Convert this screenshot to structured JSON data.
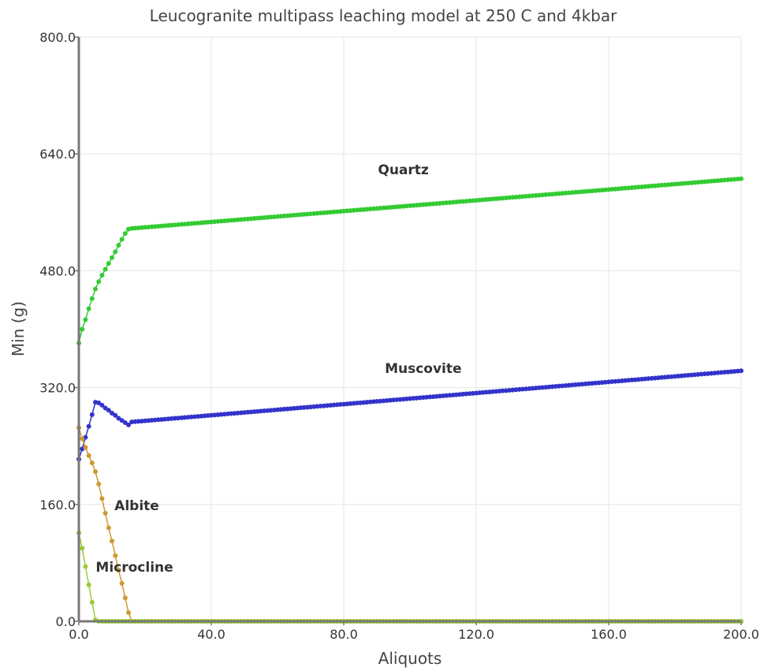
{
  "chart_data": {
    "type": "line",
    "title": "Leucogranite multipass leaching model at 250 C and 4kbar",
    "xlabel": "Aliquots",
    "ylabel": "Min (g)",
    "xlim": [
      0,
      200
    ],
    "ylim": [
      0,
      800
    ],
    "x_ticks": [
      "0.0",
      "40.0",
      "80.0",
      "120.0",
      "160.0",
      "200.0"
    ],
    "y_ticks": [
      "0.0",
      "160.0",
      "320.0",
      "480.0",
      "640.0",
      "800.0"
    ],
    "grid": true,
    "series": [
      {
        "name": "Quartz",
        "color": "#33cc33",
        "points": [
          [
            0,
            381
          ],
          [
            1,
            400
          ],
          [
            2,
            413
          ],
          [
            3,
            428
          ],
          [
            4,
            442
          ],
          [
            5,
            455
          ],
          [
            6,
            465
          ],
          [
            7,
            474
          ],
          [
            8,
            482
          ],
          [
            9,
            490
          ],
          [
            10,
            498
          ],
          [
            11,
            506
          ],
          [
            12,
            515
          ],
          [
            13,
            523
          ],
          [
            14,
            531
          ],
          [
            15,
            537
          ],
          [
            16,
            538
          ],
          [
            200,
            606
          ]
        ]
      },
      {
        "name": "Muscovite",
        "color": "#3333cc",
        "points": [
          [
            0,
            222
          ],
          [
            1,
            236
          ],
          [
            2,
            252
          ],
          [
            3,
            267
          ],
          [
            4,
            283
          ],
          [
            5,
            300
          ],
          [
            6,
            299
          ],
          [
            7,
            296
          ],
          [
            8,
            292
          ],
          [
            9,
            289
          ],
          [
            10,
            285
          ],
          [
            11,
            282
          ],
          [
            12,
            278
          ],
          [
            13,
            275
          ],
          [
            14,
            272
          ],
          [
            15,
            269
          ],
          [
            16,
            273
          ],
          [
            200,
            343
          ]
        ]
      },
      {
        "name": "Albite",
        "color": "#cc9933",
        "points": [
          [
            0,
            265
          ],
          [
            1,
            250
          ],
          [
            2,
            238
          ],
          [
            3,
            227
          ],
          [
            4,
            217
          ],
          [
            5,
            205
          ],
          [
            6,
            188
          ],
          [
            7,
            168
          ],
          [
            8,
            148
          ],
          [
            9,
            128
          ],
          [
            10,
            110
          ],
          [
            11,
            90
          ],
          [
            12,
            70
          ],
          [
            13,
            52
          ],
          [
            14,
            32
          ],
          [
            15,
            12
          ],
          [
            16,
            0
          ],
          [
            200,
            0
          ]
        ]
      },
      {
        "name": "Microcline",
        "color": "#99cc33",
        "points": [
          [
            0,
            121
          ],
          [
            1,
            100
          ],
          [
            2,
            75
          ],
          [
            3,
            50
          ],
          [
            4,
            26
          ],
          [
            5,
            2
          ],
          [
            6,
            0
          ],
          [
            200,
            0
          ]
        ]
      }
    ],
    "annotations": [
      {
        "text": "Quartz",
        "x": 98,
        "y": 612
      },
      {
        "text": "Muscovite",
        "x": 104,
        "y": 340
      },
      {
        "text": "Albite",
        "x": 17.5,
        "y": 152
      },
      {
        "text": "Microcline",
        "x": 16.8,
        "y": 68
      }
    ]
  }
}
